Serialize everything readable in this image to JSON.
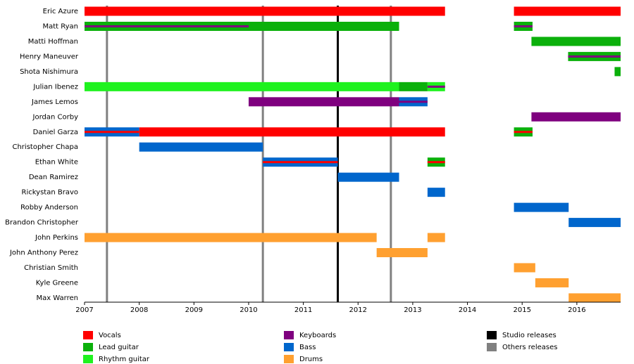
{
  "chart_data": {
    "type": "timeline",
    "categories": [
      "Eric Azure",
      "Matt Ryan",
      "Matti Hoffman",
      "Henry Maneuver",
      "Shota Nishimura",
      "Julian Ibenez",
      "James Lemos",
      "Jordan Corby",
      "Daniel Garza",
      "Christopher Chapa",
      "Ethan White",
      "Dean Ramirez",
      "Rickystan Bravo",
      "Robby Anderson",
      "Brandon Christopher",
      "John Perkins",
      "John Anthony Perez",
      "Christian Smith",
      "Kyle Greene",
      "Max Warren"
    ],
    "xlim": [
      2007,
      2016.8
    ],
    "xticks": [
      2007,
      2008,
      2009,
      2010,
      2011,
      2012,
      2013,
      2014,
      2015,
      2016
    ],
    "series": [
      {
        "name": "Vocals",
        "color": "#ff0000",
        "values": [
          [
            [
              2007,
              2013.59
            ],
            [
              2014.85,
              2016.8
            ]
          ],
          [],
          [],
          [],
          [],
          [],
          [],
          [],
          [
            [
              2008,
              2013.59
            ]
          ],
          [],
          [],
          [],
          [],
          [],
          [],
          [],
          [],
          [],
          [],
          []
        ],
        "secondary": [
          [],
          [],
          [],
          [],
          [],
          [],
          [],
          [],
          [
            [
              2007,
              2008
            ],
            [
              2014.85,
              2015.19
            ]
          ],
          [],
          [
            [
              2010.26,
              2011.63
            ],
            [
              2013.27,
              2013.59
            ]
          ],
          [],
          [],
          [],
          [],
          [],
          [],
          [],
          [],
          []
        ]
      },
      {
        "name": "Lead guitar",
        "color": "#0bb00b",
        "values": [
          [],
          [
            [
              2007,
              2012.75
            ],
            [
              2014.85,
              2015.19
            ]
          ],
          [
            [
              2015.17,
              2016.8
            ]
          ],
          [
            [
              2015.84,
              2016.8
            ]
          ],
          [
            [
              2016.69,
              2016.8
            ]
          ],
          [
            [
              2012.75,
              2013.27
            ]
          ],
          [],
          [],
          [
            [
              2014.85,
              2015.19
            ]
          ],
          [],
          [
            [
              2013.27,
              2013.59
            ]
          ],
          [],
          [],
          [],
          [],
          [],
          [],
          [],
          [],
          []
        ],
        "secondary": [
          [],
          [],
          [],
          [],
          [],
          [],
          [],
          [],
          [],
          [],
          [],
          [],
          [],
          [],
          [],
          [],
          [],
          [],
          [],
          []
        ]
      },
      {
        "name": "Rhythm guitar",
        "color": "#1ff21f",
        "values": [
          [],
          [],
          [],
          [],
          [],
          [
            [
              2007,
              2012.75
            ],
            [
              2013.27,
              2013.59
            ]
          ],
          [],
          [],
          [],
          [],
          [],
          [],
          [],
          [],
          [],
          [],
          [],
          [],
          [],
          []
        ],
        "secondary": [
          [],
          [],
          [],
          [],
          [],
          [],
          [],
          [],
          [],
          [],
          [],
          [],
          [],
          [],
          [],
          [],
          [],
          [],
          [],
          []
        ]
      },
      {
        "name": "Keyboards",
        "color": "#7f007f",
        "values": [
          [],
          [],
          [],
          [],
          [],
          [],
          [
            [
              2010,
              2012.75
            ]
          ],
          [
            [
              2015.17,
              2016.8
            ]
          ],
          [],
          [],
          [],
          [],
          [],
          [],
          [],
          [],
          [],
          [],
          [],
          []
        ],
        "secondary": [
          [],
          [
            [
              2007,
              2010
            ],
            [
              2014.85,
              2015.19
            ]
          ],
          [],
          [
            [
              2015.84,
              2016.8
            ]
          ],
          [],
          [
            [
              2013.27,
              2013.59
            ]
          ],
          [
            [
              2012.75,
              2013.27
            ]
          ],
          [],
          [],
          [],
          [],
          [],
          [],
          [],
          [],
          [],
          [],
          [],
          [],
          []
        ]
      },
      {
        "name": "Bass",
        "color": "#0066cc",
        "values": [
          [],
          [],
          [],
          [],
          [],
          [],
          [
            [
              2012.75,
              2013.27
            ]
          ],
          [],
          [
            [
              2007,
              2008
            ]
          ],
          [
            [
              2008,
              2010.26
            ]
          ],
          [
            [
              2010.26,
              2011.63
            ]
          ],
          [
            [
              2011.63,
              2012.75
            ]
          ],
          [
            [
              2013.27,
              2013.59
            ]
          ],
          [
            [
              2014.85,
              2015.85
            ]
          ],
          [
            [
              2015.85,
              2016.8
            ]
          ],
          [],
          [],
          [],
          [],
          []
        ],
        "secondary": [
          [],
          [],
          [],
          [],
          [],
          [],
          [],
          [],
          [],
          [],
          [],
          [],
          [],
          [],
          [],
          [],
          [],
          [],
          [],
          []
        ]
      },
      {
        "name": "Drums",
        "color": "#ffa030",
        "values": [
          [],
          [],
          [],
          [],
          [],
          [],
          [],
          [],
          [],
          [],
          [],
          [],
          [],
          [],
          [],
          [
            [
              2007,
              2012.34
            ],
            [
              2013.27,
              2013.59
            ]
          ],
          [
            [
              2012.34,
              2013.27
            ]
          ],
          [
            [
              2014.85,
              2015.24
            ]
          ],
          [
            [
              2015.24,
              2015.85
            ]
          ],
          [
            [
              2015.85,
              2016.8
            ]
          ]
        ],
        "secondary": [
          [],
          [],
          [],
          [],
          [],
          [],
          [],
          [],
          [],
          [],
          [],
          [],
          [],
          [],
          [],
          [],
          [],
          [],
          [],
          []
        ]
      }
    ],
    "markers": [
      {
        "name": "Studio releases",
        "color": "#000000",
        "x": [
          2011.63
        ]
      },
      {
        "name": "Others releases",
        "color": "#808080",
        "x": [
          2007.41,
          2010.26,
          2012.6
        ]
      }
    ]
  }
}
